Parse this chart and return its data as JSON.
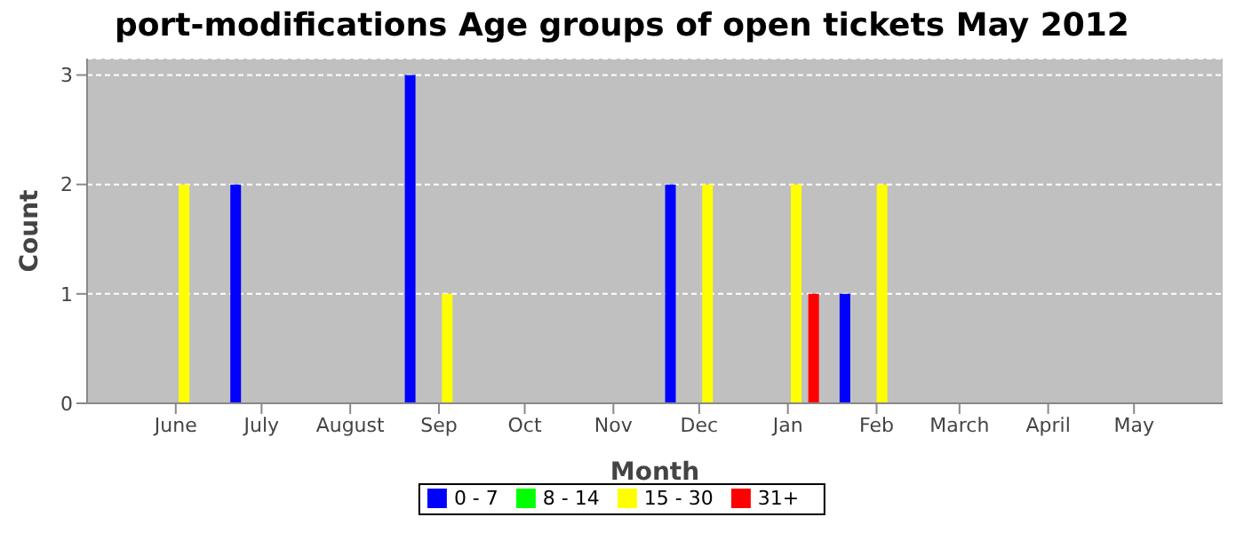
{
  "chart_data": {
    "type": "bar",
    "title": "port-modifications Age groups of open tickets May 2012",
    "xlabel": "Month",
    "ylabel": "Count",
    "series": [
      {
        "name": "0 - 7",
        "color": "#0000ff",
        "x": [
          "2011-06-22",
          "2011-08-22",
          "2011-11-21",
          "2012-01-21"
        ],
        "values": [
          2,
          3,
          2,
          1
        ]
      },
      {
        "name": "8 - 14",
        "color": "#00ff00"
      },
      {
        "name": "15 - 30",
        "color": "#ffff00",
        "x": [
          "2011-06-04",
          "2011-09-04",
          "2011-12-04",
          "2012-01-04",
          "2012-02-03"
        ],
        "values": [
          2,
          1,
          2,
          2,
          2
        ]
      },
      {
        "name": "31+",
        "color": "#ff0000",
        "x": [
          "2012-01-10"
        ],
        "values": [
          1
        ]
      }
    ],
    "xlim": [
      "2011-05-01",
      "2012-06-01"
    ],
    "xticks": [
      {
        "value": "2011-06-01",
        "label": "June"
      },
      {
        "value": "2011-07-01",
        "label": "July"
      },
      {
        "value": "2011-08-01",
        "label": "August"
      },
      {
        "value": "2011-09-01",
        "label": "Sep"
      },
      {
        "value": "2011-10-01",
        "label": "Oct"
      },
      {
        "value": "2011-11-01",
        "label": "Nov"
      },
      {
        "value": "2011-12-01",
        "label": "Dec"
      },
      {
        "value": "2012-01-01",
        "label": "Jan"
      },
      {
        "value": "2012-02-01",
        "label": "Feb"
      },
      {
        "value": "2012-03-01",
        "label": "March"
      },
      {
        "value": "2012-04-01",
        "label": "April"
      },
      {
        "value": "2012-05-01",
        "label": "May"
      }
    ],
    "ylim": [
      0,
      3.15
    ],
    "yticks": [
      0,
      1,
      2,
      3
    ],
    "grid": "y",
    "legend": "bottom"
  }
}
